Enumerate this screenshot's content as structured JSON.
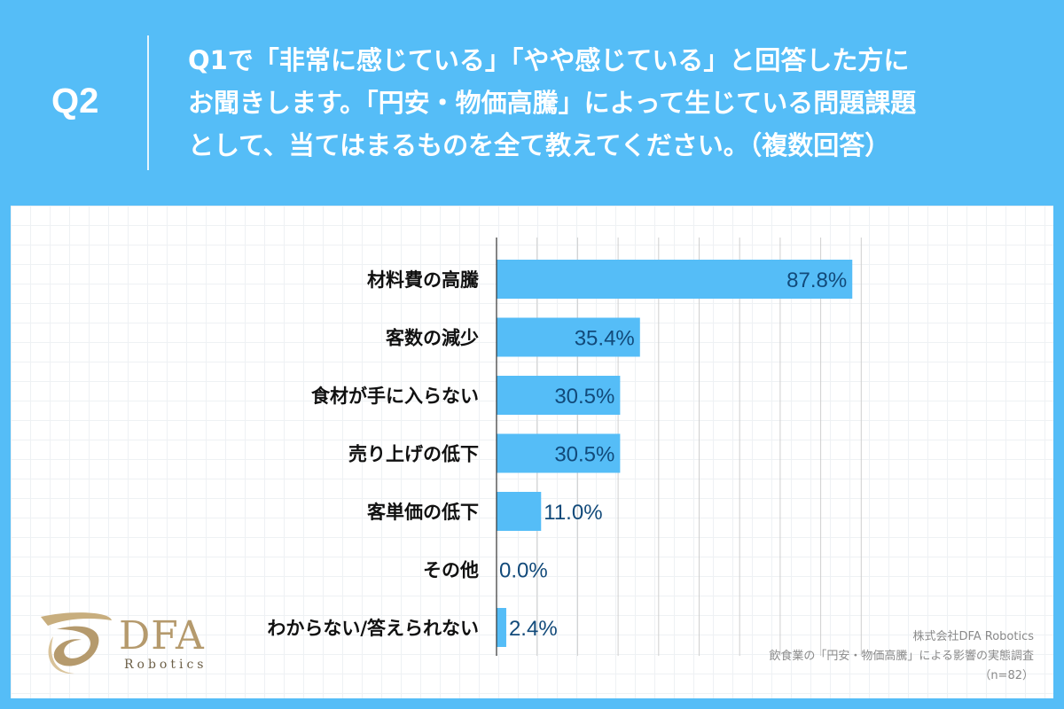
{
  "header": {
    "label": "Q2",
    "question_lines": [
      "Q1で「非常に感じている」「やや感じている」と回答した方に",
      "お聞きします。「円安・物価高騰」によって生じている問題課題",
      "として、当てはまるものを全て教えてください。（複数回答）"
    ]
  },
  "colors": {
    "background": "#55bdf7",
    "bar": "#55bdf7",
    "value_label": "#124a7a",
    "grid": "#cfcfcf"
  },
  "chart_data": {
    "type": "bar",
    "orientation": "horizontal",
    "categories": [
      "材料費の高騰",
      "客数の減少",
      "食材が手に入らない",
      "売り上げの低下",
      "客単価の低下",
      "その他",
      "わからない/答えられない"
    ],
    "values": [
      87.8,
      35.4,
      30.5,
      30.5,
      11.0,
      0.0,
      2.4
    ],
    "value_labels": [
      "87.8%",
      "35.4%",
      "30.5%",
      "30.5%",
      "11.0%",
      "0.0%",
      "2.4%"
    ],
    "xlim": [
      0,
      100
    ],
    "grid": true
  },
  "logo": {
    "name": "DFA",
    "sub": "Robotics",
    "icon": "dfa-swirl-logo-icon"
  },
  "source": {
    "line1": "株式会社DFA Robotics",
    "line2": "飲食業の「円安・物価高騰」による影響の実態調査",
    "line3": "（n=82）"
  }
}
